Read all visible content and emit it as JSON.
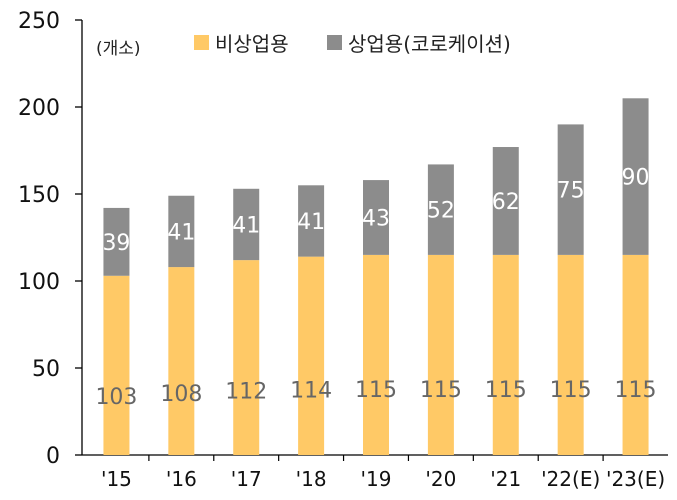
{
  "chart_data": {
    "type": "bar",
    "stacked": true,
    "unit_label": "(개소)",
    "categories": [
      "'15",
      "'16",
      "'17",
      "'18",
      "'19",
      "'20",
      "'21",
      "'22(E)",
      "'23(E)"
    ],
    "series": [
      {
        "name": "비상업용",
        "color": "#FFC966",
        "values": [
          103,
          108,
          112,
          114,
          115,
          115,
          115,
          115,
          115
        ]
      },
      {
        "name": "상업용(코로케이션)",
        "color": "#8C8C8C",
        "values": [
          39,
          41,
          41,
          41,
          43,
          52,
          62,
          75,
          90
        ]
      }
    ],
    "ylim": [
      0,
      250
    ],
    "yticks": [
      0,
      50,
      100,
      150,
      200,
      250
    ],
    "grid": false,
    "legend_position": "top"
  }
}
